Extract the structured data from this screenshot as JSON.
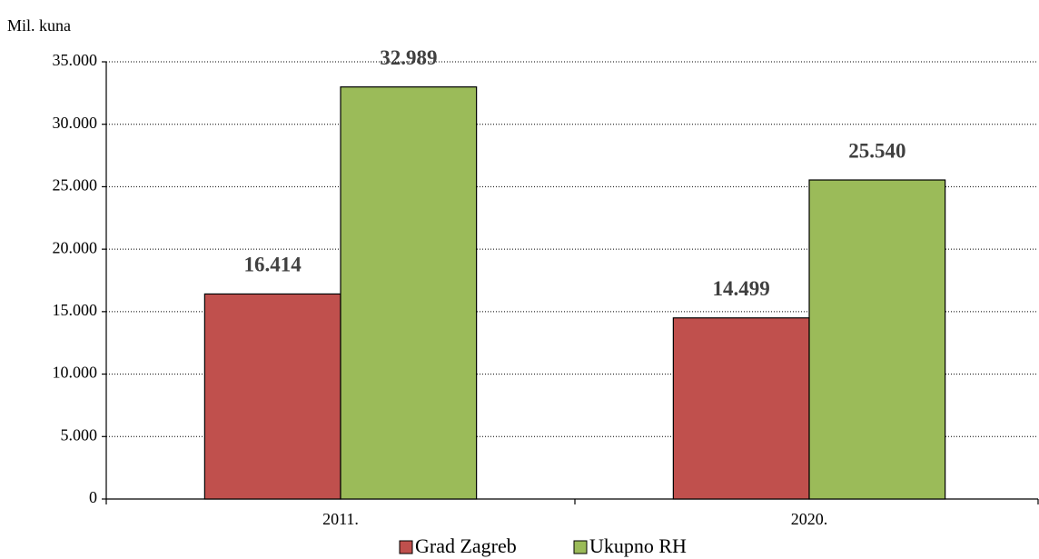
{
  "chart_data": {
    "type": "bar",
    "y_label": "Mil. kuna",
    "categories": [
      "2011.",
      "2020."
    ],
    "series": [
      {
        "name": "Grad Zagreb",
        "color": "#c0504d",
        "values": [
          16414,
          14499
        ],
        "value_labels": [
          "16.414",
          "14.499"
        ]
      },
      {
        "name": "Ukupno RH",
        "color": "#9bbb59",
        "values": [
          32989,
          25540
        ],
        "value_labels": [
          "32.989",
          "25.540"
        ]
      }
    ],
    "ylim": [
      0,
      35000
    ],
    "yticks": [
      0,
      {
        "value": 5000,
        "label": "5.000"
      },
      {
        "value": 10000,
        "label": "10.000"
      },
      {
        "value": 15000,
        "label": "15.000"
      },
      {
        "value": 20000,
        "label": "20.000"
      },
      {
        "value": 25000,
        "label": "25.000"
      },
      {
        "value": 30000,
        "label": "30.000"
      },
      {
        "value": 35000,
        "label": "35.000"
      }
    ],
    "grid": true,
    "legend": "bottom"
  }
}
